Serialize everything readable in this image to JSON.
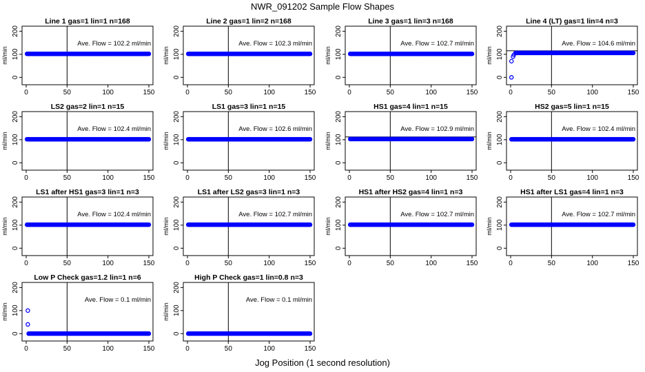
{
  "figure": {
    "title": "NWR_091202  Sample Flow Shapes",
    "xlabel": "Jog Position (1 second resolution)"
  },
  "chart_data": [
    {
      "type": "scatter",
      "title": "Line 1 gas=1 lin=1 n=168",
      "ylabel": "ml/min",
      "xlim": [
        0,
        150
      ],
      "ylim": [
        -20,
        210
      ],
      "xticks": [
        0,
        50,
        100,
        150
      ],
      "yticks": [
        0,
        100,
        200
      ],
      "vline": 50,
      "annotation": "Ave. Flow =  102.2  ml/min",
      "series": [
        {
          "x": [
            1,
            150
          ],
          "y": [
            102,
            102
          ],
          "dense": true
        }
      ],
      "outliers": [],
      "hline": null
    },
    {
      "type": "scatter",
      "title": "Line 2 gas=1 lin=2 n=168",
      "ylabel": "ml/min",
      "xlim": [
        0,
        150
      ],
      "ylim": [
        -20,
        210
      ],
      "xticks": [
        0,
        50,
        100,
        150
      ],
      "yticks": [
        0,
        100,
        200
      ],
      "vline": 50,
      "annotation": "Ave. Flow =  102.3  ml/min",
      "series": [
        {
          "x": [
            1,
            150
          ],
          "y": [
            102,
            102
          ],
          "dense": true
        }
      ],
      "outliers": [],
      "hline": null
    },
    {
      "type": "scatter",
      "title": "Line 3 gas=1 lin=3 n=168",
      "ylabel": "ml/min",
      "xlim": [
        0,
        150
      ],
      "ylim": [
        -20,
        210
      ],
      "xticks": [
        0,
        50,
        100,
        150
      ],
      "yticks": [
        0,
        100,
        200
      ],
      "vline": 50,
      "annotation": "Ave. Flow =  102.7  ml/min",
      "series": [
        {
          "x": [
            1,
            150
          ],
          "y": [
            102,
            102
          ],
          "dense": true
        }
      ],
      "outliers": [],
      "hline": null
    },
    {
      "type": "scatter",
      "title": "Line 4 (LT) gas=1 lin=4 n=3",
      "ylabel": "ml/min",
      "xlim": [
        0,
        150
      ],
      "ylim": [
        -20,
        210
      ],
      "xticks": [
        0,
        50,
        100,
        150
      ],
      "yticks": [
        0,
        100,
        200
      ],
      "vline": 50,
      "annotation": "Ave. Flow =  104.6  ml/min",
      "series": [
        {
          "x": [
            6,
            150
          ],
          "y": [
            106,
            106
          ],
          "dense": true
        }
      ],
      "outliers": [
        [
          1,
          0
        ],
        [
          1,
          70
        ],
        [
          3,
          90
        ],
        [
          4,
          98
        ]
      ],
      "hline": 115
    },
    {
      "type": "scatter",
      "title": "LS2 gas=2 lin=1 n=15",
      "ylabel": "ml/min",
      "xlim": [
        0,
        150
      ],
      "ylim": [
        -20,
        210
      ],
      "xticks": [
        0,
        50,
        100,
        150
      ],
      "yticks": [
        0,
        100,
        200
      ],
      "vline": 50,
      "annotation": "Ave. Flow =  102.4  ml/min",
      "series": [
        {
          "x": [
            1,
            150
          ],
          "y": [
            102,
            102
          ],
          "dense": true
        }
      ],
      "outliers": [],
      "hline": null
    },
    {
      "type": "scatter",
      "title": "LS1 gas=3 lin=1 n=15",
      "ylabel": "ml/min",
      "xlim": [
        0,
        150
      ],
      "ylim": [
        -20,
        210
      ],
      "xticks": [
        0,
        50,
        100,
        150
      ],
      "yticks": [
        0,
        100,
        200
      ],
      "vline": 50,
      "annotation": "Ave. Flow =  102.6  ml/min",
      "series": [
        {
          "x": [
            1,
            150
          ],
          "y": [
            102,
            102
          ],
          "dense": true
        }
      ],
      "outliers": [],
      "hline": null
    },
    {
      "type": "scatter",
      "title": "HS1 gas=4 lin=1 n=15",
      "ylabel": "ml/min",
      "xlim": [
        0,
        150
      ],
      "ylim": [
        -20,
        210
      ],
      "xticks": [
        0,
        50,
        100,
        150
      ],
      "yticks": [
        0,
        100,
        200
      ],
      "vline": 50,
      "annotation": "Ave. Flow =  102.9  ml/min",
      "series": [
        {
          "x": [
            1,
            150
          ],
          "y": [
            103,
            103
          ],
          "dense": true
        }
      ],
      "outliers": [],
      "hline": 112
    },
    {
      "type": "scatter",
      "title": "HS2 gas=5 lin=1 n=15",
      "ylabel": "ml/min",
      "xlim": [
        0,
        150
      ],
      "ylim": [
        -20,
        210
      ],
      "xticks": [
        0,
        50,
        100,
        150
      ],
      "yticks": [
        0,
        100,
        200
      ],
      "vline": 50,
      "annotation": "Ave. Flow =  102.4  ml/min",
      "series": [
        {
          "x": [
            1,
            150
          ],
          "y": [
            102,
            102
          ],
          "dense": true
        }
      ],
      "outliers": [],
      "hline": null
    },
    {
      "type": "scatter",
      "title": "LS1 after HS1 gas=3 lin=1 n=3",
      "ylabel": "ml/min",
      "xlim": [
        0,
        150
      ],
      "ylim": [
        -20,
        210
      ],
      "xticks": [
        0,
        50,
        100,
        150
      ],
      "yticks": [
        0,
        100,
        200
      ],
      "vline": 50,
      "annotation": "Ave. Flow =  102.4  ml/min",
      "series": [
        {
          "x": [
            1,
            150
          ],
          "y": [
            102,
            102
          ],
          "dense": true
        }
      ],
      "outliers": [],
      "hline": null
    },
    {
      "type": "scatter",
      "title": "LS1 after LS2 gas=3 lin=1 n=3",
      "ylabel": "ml/min",
      "xlim": [
        0,
        150
      ],
      "ylim": [
        -20,
        210
      ],
      "xticks": [
        0,
        50,
        100,
        150
      ],
      "yticks": [
        0,
        100,
        200
      ],
      "vline": 50,
      "annotation": "Ave. Flow =  102.7  ml/min",
      "series": [
        {
          "x": [
            1,
            150
          ],
          "y": [
            102,
            102
          ],
          "dense": true
        }
      ],
      "outliers": [],
      "hline": null
    },
    {
      "type": "scatter",
      "title": "HS1 after HS2 gas=4 lin=1 n=3",
      "ylabel": "ml/min",
      "xlim": [
        0,
        150
      ],
      "ylim": [
        -20,
        210
      ],
      "xticks": [
        0,
        50,
        100,
        150
      ],
      "yticks": [
        0,
        100,
        200
      ],
      "vline": 50,
      "annotation": "Ave. Flow =  102.7  ml/min",
      "series": [
        {
          "x": [
            1,
            150
          ],
          "y": [
            102,
            102
          ],
          "dense": true
        }
      ],
      "outliers": [],
      "hline": null
    },
    {
      "type": "scatter",
      "title": "HS1 after LS1 gas=4 lin=1 n=3",
      "ylabel": "ml/min",
      "xlim": [
        0,
        150
      ],
      "ylim": [
        -20,
        210
      ],
      "xticks": [
        0,
        50,
        100,
        150
      ],
      "yticks": [
        0,
        100,
        200
      ],
      "vline": 50,
      "annotation": "Ave. Flow =  102.7  ml/min",
      "series": [
        {
          "x": [
            1,
            150
          ],
          "y": [
            102,
            102
          ],
          "dense": true
        }
      ],
      "outliers": [],
      "hline": null
    },
    {
      "type": "scatter",
      "title": "Low P Check gas=1.2 lin=1 n=6",
      "ylabel": "ml/min",
      "xlim": [
        0,
        150
      ],
      "ylim": [
        -20,
        210
      ],
      "xticks": [
        0,
        50,
        100,
        150
      ],
      "yticks": [
        0,
        100,
        200
      ],
      "vline": 50,
      "annotation": "Ave. Flow =  0.1  ml/min",
      "series": [
        {
          "x": [
            3,
            150
          ],
          "y": [
            0,
            0
          ],
          "dense": true
        }
      ],
      "outliers": [
        [
          2,
          100
        ],
        [
          2,
          40
        ]
      ],
      "hline": null
    },
    {
      "type": "scatter",
      "title": "High P Check gas=1 lin=0.8 n=3",
      "ylabel": "ml/min",
      "xlim": [
        0,
        150
      ],
      "ylim": [
        -20,
        210
      ],
      "xticks": [
        0,
        50,
        100,
        150
      ],
      "yticks": [
        0,
        100,
        200
      ],
      "vline": 50,
      "annotation": "Ave. Flow =  0.1  ml/min",
      "series": [
        {
          "x": [
            1,
            150
          ],
          "y": [
            0,
            0
          ],
          "dense": true
        }
      ],
      "outliers": [],
      "hline": null
    }
  ],
  "colors": {
    "points": "#0000ff",
    "axis": "#000000",
    "background": "#ffffff"
  }
}
